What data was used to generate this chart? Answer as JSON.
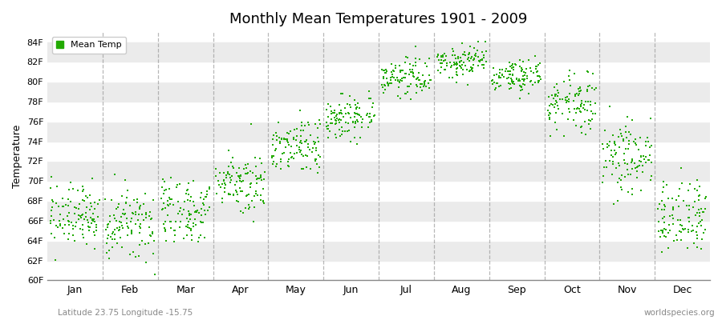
{
  "title": "Monthly Mean Temperatures 1901 - 2009",
  "ylabel": "Temperature",
  "xlabel_bottom_left": "Latitude 23.75 Longitude -15.75",
  "xlabel_bottom_right": "worldspecies.org",
  "ylim": [
    60,
    85
  ],
  "yticks": [
    60,
    62,
    64,
    66,
    68,
    70,
    72,
    74,
    76,
    78,
    80,
    82,
    84
  ],
  "ytick_labels": [
    "60F",
    "62F",
    "64F",
    "66F",
    "68F",
    "70F",
    "72F",
    "74F",
    "76F",
    "78F",
    "80F",
    "82F",
    "84F"
  ],
  "months": [
    "Jan",
    "Feb",
    "Mar",
    "Apr",
    "May",
    "Jun",
    "Jul",
    "Aug",
    "Sep",
    "Oct",
    "Nov",
    "Dec"
  ],
  "month_centers": [
    0.5,
    1.5,
    2.5,
    3.5,
    4.5,
    5.5,
    6.5,
    7.5,
    8.5,
    9.5,
    10.5,
    11.5
  ],
  "xlim": [
    0,
    12
  ],
  "scatter_color": "#22aa00",
  "scatter_marker": "s",
  "scatter_size": 3,
  "scatter_alpha": 1.0,
  "background_color": "#ffffff",
  "alt_band_color": "#ebebeb",
  "grid_color": "#999999",
  "legend_label": "Mean Temp",
  "monthly_base": [
    66.5,
    65.5,
    67.0,
    70.0,
    73.5,
    76.5,
    80.5,
    82.0,
    80.5,
    78.0,
    72.5,
    66.5
  ],
  "monthly_spread": [
    1.5,
    1.8,
    1.8,
    1.5,
    1.5,
    1.2,
    0.9,
    0.9,
    0.9,
    1.5,
    2.0,
    1.8
  ],
  "n_years": 109
}
